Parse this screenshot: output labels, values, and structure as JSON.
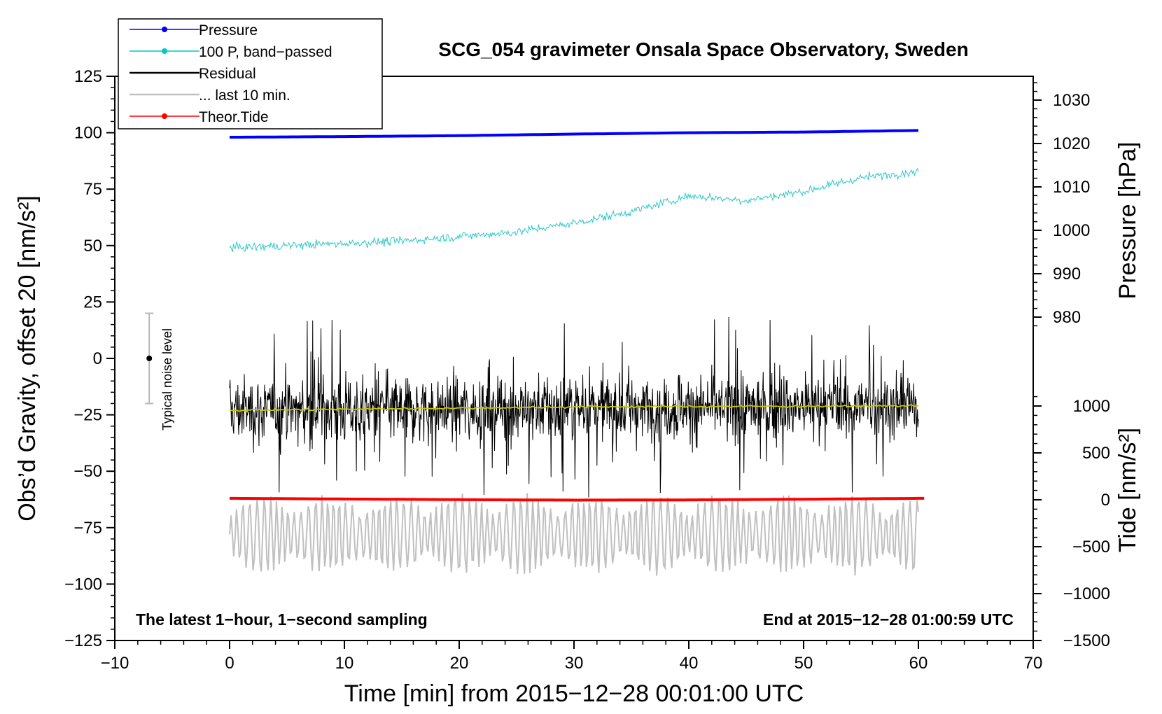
{
  "chart_data": {
    "type": "line",
    "title": "SCG_054 gravimeter Onsala Space Observatory, Sweden",
    "xlabel": "Time [min] from 2015−12−28 00:01:00 UTC",
    "ylabel_left": "Obs’d Gravity, offset 20 [nm/s²]",
    "ylabel_right_pressure": "Pressure [hPa]",
    "ylabel_right_tide": "Tide [nm/s²]",
    "xlim": [
      -10,
      70
    ],
    "ylim_left": [
      -125,
      125
    ],
    "x_ticks": [
      "−10",
      "0",
      "10",
      "20",
      "30",
      "40",
      "50",
      "60",
      "70"
    ],
    "y_left_ticks": [
      "125",
      "100",
      "75",
      "50",
      "25",
      "0",
      "−25",
      "−50",
      "−75",
      "−100",
      "−125"
    ],
    "pressure_ticks": [
      "1030",
      "1020",
      "1010",
      "1000",
      "990",
      "980"
    ],
    "pressure_range": [
      980,
      1030
    ],
    "tide_ticks": [
      "1000",
      "500",
      "0",
      "−500",
      "−1000",
      "−1500"
    ],
    "tide_range": [
      -1500,
      1000
    ],
    "annotation_left": "The latest 1−hour, 1−second sampling",
    "annotation_right": "End at 2015−12−28 01:00:59 UTC",
    "noise_label": "Typical noise level",
    "noise_level": {
      "x": -7,
      "center": 0,
      "half_range": 20
    },
    "legend": [
      {
        "label": "Pressure",
        "color": "#0000ff",
        "marker": true
      },
      {
        "label": "100 P, band−passed",
        "color": "#00c8c8",
        "marker": true
      },
      {
        "label": "Residual",
        "color": "#000000",
        "marker": false
      },
      {
        "label": "... last 10 min.",
        "color": "#c0c0c0",
        "marker": false
      },
      {
        "label": "Theor.Tide",
        "color": "#ff0000",
        "marker": true
      }
    ],
    "series": [
      {
        "name": "Pressure",
        "color": "#0000ff",
        "x": [
          0,
          10,
          20,
          30,
          40,
          50,
          60
        ],
        "y": [
          98,
          98.3,
          98.7,
          99.4,
          100,
          100.3,
          101
        ]
      },
      {
        "name": "100 P, band−passed",
        "color": "#30c8c8",
        "x": [
          0,
          5,
          10,
          15,
          20,
          25,
          30,
          35,
          40,
          45,
          50,
          55,
          60
        ],
        "y": [
          49,
          50,
          51,
          52,
          54,
          56,
          60,
          65,
          72,
          70,
          74,
          80,
          83
        ]
      },
      {
        "name": "Residual",
        "color": "#000000",
        "x": [
          0,
          60
        ],
        "y": [
          -23,
          -21
        ],
        "spread": 14
      },
      {
        "name": "Residual running mean",
        "color": "#c8c800",
        "x": [
          0,
          10,
          20,
          30,
          40,
          50,
          60
        ],
        "y": [
          -23,
          -22.5,
          -22,
          -21.5,
          -21.3,
          -21.2,
          -21
        ]
      },
      {
        "name": "Theor.Tide",
        "color": "#ff0000",
        "x": [
          0,
          10,
          20,
          30,
          40,
          50,
          60.5
        ],
        "y": [
          -62,
          -62.3,
          -62.6,
          -62.8,
          -62.7,
          -62.4,
          -62
        ]
      },
      {
        "name": "... last 10 min.",
        "color": "#c0c0c0",
        "x": [
          0,
          60
        ],
        "y": [
          -78,
          -78
        ],
        "amplitude": 12
      }
    ]
  }
}
